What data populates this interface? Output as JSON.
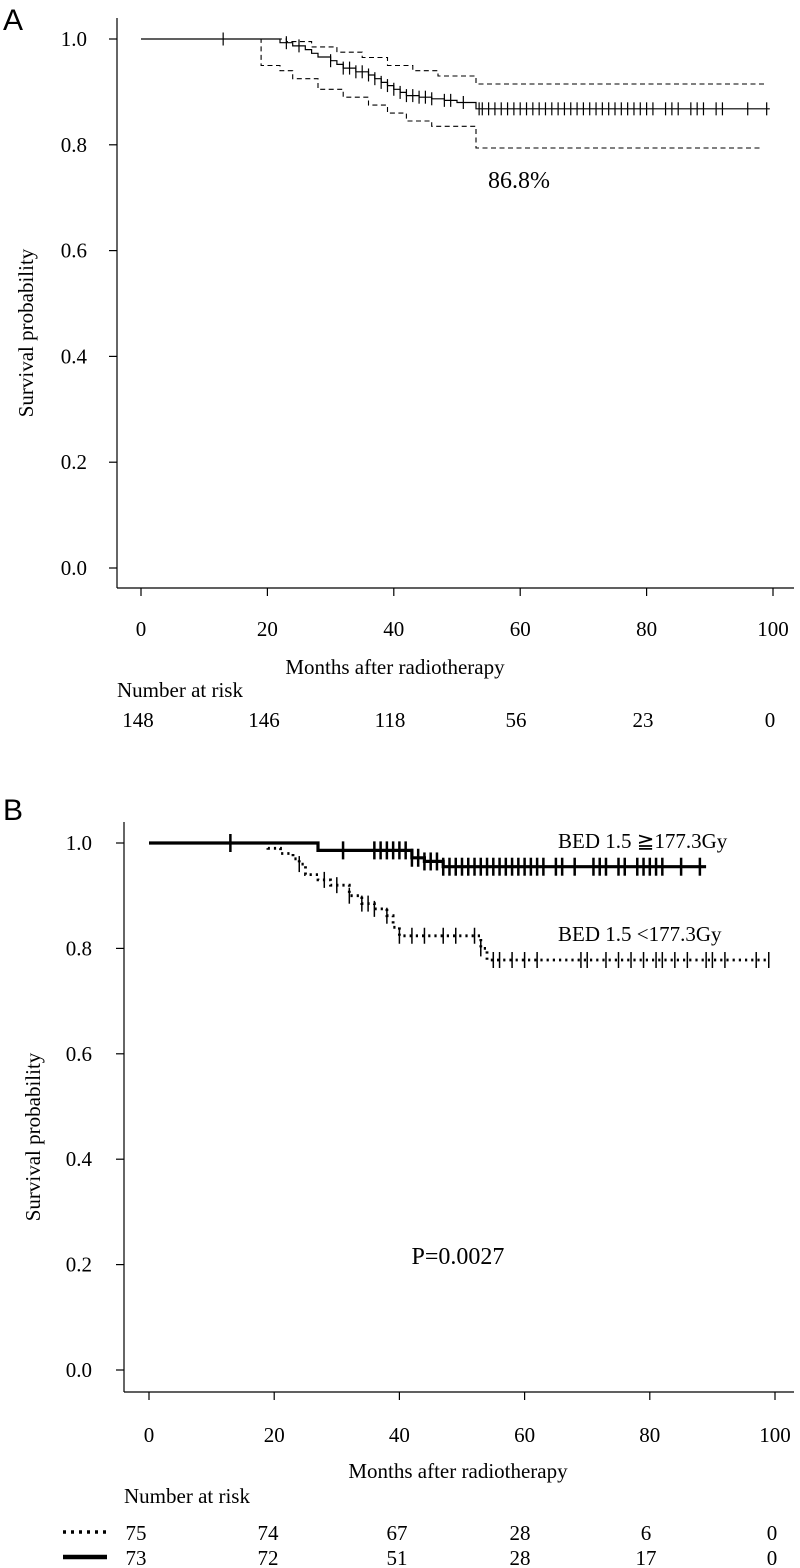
{
  "chart_data": [
    {
      "type": "line",
      "panel_label": "A",
      "xlabel": "Months after radiotherapy",
      "ylabel": "Survival probability",
      "xlim": [
        0,
        100
      ],
      "ylim": [
        0,
        1
      ],
      "x_ticks": [
        "0",
        "20",
        "40",
        "60",
        "80",
        "100"
      ],
      "y_ticks": [
        "0.0",
        "0.2",
        "0.4",
        "0.6",
        "0.8",
        "1.0"
      ],
      "annotation": "86.8%",
      "risk_table": {
        "title": "Number at risk",
        "rows": [
          {
            "values": [
              "148",
              "146",
              "118",
              "56",
              "23",
              "0"
            ]
          }
        ]
      },
      "series": [
        {
          "name": "Overall survival",
          "style": "solid",
          "x": [
            0,
            19,
            22,
            24,
            26,
            27,
            28,
            30,
            31,
            32,
            34,
            36,
            37,
            38,
            39,
            40,
            41,
            42,
            44,
            46,
            48,
            50,
            53,
            99.5
          ],
          "y": [
            1.0,
            1.0,
            0.993,
            0.987,
            0.98,
            0.973,
            0.966,
            0.959,
            0.952,
            0.945,
            0.938,
            0.932,
            0.925,
            0.918,
            0.912,
            0.905,
            0.899,
            0.893,
            0.89,
            0.887,
            0.884,
            0.88,
            0.868,
            0.868
          ],
          "censor_x": [
            13,
            23,
            25,
            30,
            32,
            33,
            34,
            35,
            36,
            37,
            38,
            39,
            40,
            41,
            42,
            43,
            44,
            45,
            46,
            48,
            49,
            51,
            53.5,
            54,
            55,
            56,
            57,
            58,
            59,
            60,
            61,
            62,
            63,
            64,
            65,
            66,
            67,
            68,
            69,
            70,
            71,
            72,
            73,
            74,
            75,
            76,
            77,
            78,
            79,
            80,
            81,
            83,
            84,
            85,
            87,
            88,
            89,
            91,
            92,
            96,
            99
          ]
        },
        {
          "name": "Upper 95% CI",
          "style": "dashed",
          "x": [
            0,
            20,
            23,
            27,
            31,
            35,
            39,
            43,
            47,
            53,
            99
          ],
          "y": [
            1.0,
            1.0,
            0.995,
            0.985,
            0.975,
            0.965,
            0.95,
            0.94,
            0.93,
            0.915,
            0.915
          ]
        },
        {
          "name": "Lower 95% CI",
          "style": "dashed",
          "x": [
            0,
            19,
            22,
            24,
            28,
            32,
            36,
            39,
            42,
            46,
            53,
            98
          ],
          "y": [
            1.0,
            0.95,
            0.94,
            0.925,
            0.905,
            0.89,
            0.875,
            0.86,
            0.845,
            0.835,
            0.794,
            0.794
          ]
        }
      ]
    },
    {
      "type": "line",
      "panel_label": "B",
      "xlabel": "Months after radiotherapy",
      "ylabel": "Survival probability",
      "xlim": [
        0,
        100
      ],
      "ylim": [
        0,
        1
      ],
      "x_ticks": [
        "0",
        "20",
        "40",
        "60",
        "80",
        "100"
      ],
      "y_ticks": [
        "0.0",
        "0.2",
        "0.4",
        "0.6",
        "0.8",
        "1.0"
      ],
      "annotation": "P=0.0027",
      "risk_table": {
        "title": "Number at risk",
        "rows": [
          {
            "line_style": "dotted",
            "values": [
              "75",
              "74",
              "67",
              "28",
              "6",
              "0"
            ]
          },
          {
            "line_style": "thick-solid",
            "values": [
              "73",
              "72",
              "51",
              "28",
              "17",
              "0"
            ]
          }
        ]
      },
      "series": [
        {
          "name": "BED 1.5 ≧177.3Gy",
          "style": "thick-solid",
          "x": [
            0,
            27,
            42,
            44,
            47,
            89
          ],
          "y": [
            1.0,
            0.986,
            0.972,
            0.965,
            0.955,
            0.955
          ],
          "censor_x": [
            13,
            31,
            36,
            37,
            38,
            39,
            40,
            41,
            42,
            43,
            44,
            45,
            46,
            47,
            48,
            49,
            50,
            51,
            52,
            53,
            54,
            55,
            56,
            57,
            58,
            59,
            60,
            61,
            62,
            63,
            65,
            66,
            68,
            71,
            72,
            73,
            75,
            76,
            78,
            79,
            80,
            81,
            82,
            85,
            88
          ]
        },
        {
          "name": "BED 1.5 <177.3Gy",
          "style": "dotted",
          "x": [
            0,
            19,
            21,
            23,
            24,
            25,
            27,
            29,
            32,
            34,
            36,
            38,
            39,
            40,
            53,
            54,
            99
          ],
          "y": [
            1.0,
            0.99,
            0.98,
            0.97,
            0.96,
            0.94,
            0.93,
            0.92,
            0.9,
            0.885,
            0.875,
            0.862,
            0.84,
            0.824,
            0.8,
            0.778,
            0.778
          ],
          "censor_x": [
            24,
            28,
            30,
            32,
            34,
            35,
            36,
            38,
            40,
            42,
            44,
            47,
            49,
            52,
            53,
            55,
            56,
            58,
            60,
            62,
            69,
            70,
            73,
            75,
            77,
            79,
            81,
            82,
            84,
            86,
            89,
            90,
            92,
            97,
            99
          ]
        }
      ]
    }
  ]
}
